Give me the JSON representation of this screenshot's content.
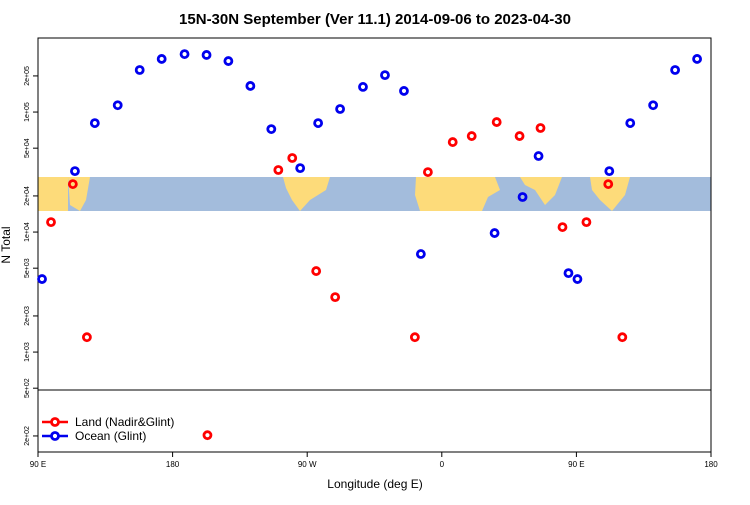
{
  "chart_data": {
    "type": "scatter",
    "title": "15N-30N September (Ver 11.1)   2014-09-06 to 2023-04-30",
    "x_label": "Longitude (deg E)",
    "y_label": "N Total",
    "log_y": true,
    "legend_position": "bottom-left",
    "xlim": [
      90,
      540
    ],
    "ylim": [
      147,
      414000
    ],
    "xticks": [
      {
        "value": 90,
        "label": "90 E"
      },
      {
        "value": 180,
        "label": "180"
      },
      {
        "value": 270,
        "label": "90 W"
      },
      {
        "value": 360,
        "label": "0"
      },
      {
        "value": 450,
        "label": "90 E"
      },
      {
        "value": 540,
        "label": "180"
      }
    ],
    "yticks": [
      {
        "value": 200000,
        "label": "2e+05"
      },
      {
        "value": 100000,
        "label": "1e+05"
      },
      {
        "value": 50000,
        "label": "5e+04"
      },
      {
        "value": 20000,
        "label": "2e+04"
      },
      {
        "value": 10000,
        "label": "1e+04"
      },
      {
        "value": 5000,
        "label": "5e+03"
      },
      {
        "value": 2000,
        "label": "2e+03"
      },
      {
        "value": 1000,
        "label": "1e+03"
      },
      {
        "value": 500,
        "label": "5e+02"
      },
      {
        "value": 200,
        "label": "2e+02"
      }
    ],
    "series": [
      {
        "name": "Land (Nadir&Glint)",
        "color": "#ff0000",
        "x": [
          98.7,
          113.3,
          122.7,
          203.3,
          250.7,
          260,
          276,
          288.7,
          342,
          350.7,
          367.3,
          380,
          396.7,
          412,
          426,
          440.7,
          456.7,
          471.3,
          480.7
        ],
        "values": [
          12100,
          25100,
          1330,
          203,
          32900,
          41400,
          4730,
          2870,
          1330,
          31600,
          56200,
          63100,
          82500,
          63100,
          73600,
          11000,
          12100,
          25100,
          1330
        ]
      },
      {
        "name": "Ocean (Glint)",
        "color": "#0000ee",
        "x": [
          92.7,
          114.7,
          128,
          143.3,
          158,
          172.7,
          188,
          202.7,
          217.3,
          232,
          246,
          265.3,
          277.3,
          292,
          307.3,
          322,
          334.7,
          346,
          395.3,
          414,
          424.7,
          444.7,
          450.7,
          472,
          486,
          501.3,
          516,
          530.7
        ],
        "values": [
          4060,
          32200,
          80900,
          114000,
          224000,
          277000,
          304000,
          299000,
          266000,
          165000,
          72100,
          34100,
          80900,
          106000,
          162000,
          203000,
          150000,
          6560,
          9810,
          19600,
          43000,
          4550,
          4060,
          32200,
          80900,
          114000,
          224000,
          277000
        ]
      }
    ]
  }
}
